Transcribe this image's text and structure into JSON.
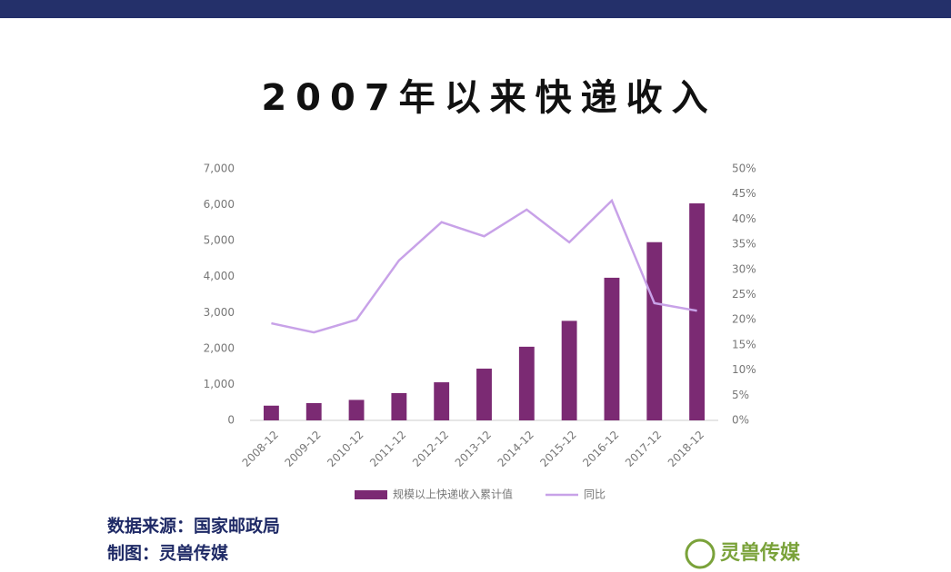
{
  "chart_data": {
    "type": "bar",
    "title": "2007年以来快递收入",
    "categories": [
      "2008-12",
      "2009-12",
      "2010-12",
      "2011-12",
      "2012-12",
      "2013-12",
      "2014-12",
      "2015-12",
      "2016-12",
      "2017-12",
      "2018-12"
    ],
    "series": [
      {
        "name": "规模以上快递收入累计值",
        "type": "bar",
        "color": "#7b2a73",
        "values": [
          410,
          480,
          570,
          760,
          1060,
          1440,
          2050,
          2770,
          3970,
          4960,
          6040
        ]
      },
      {
        "name": "同比",
        "type": "line",
        "axis": "y2",
        "color": "#c8a2e8",
        "values": [
          19.3,
          17.5,
          20.0,
          31.8,
          39.4,
          36.6,
          41.9,
          35.4,
          43.7,
          23.3,
          21.8
        ]
      }
    ],
    "ylim": [
      0,
      7000
    ],
    "yticks": [
      0,
      {
        "value": 1000,
        "label": "1,000"
      },
      {
        "value": 2000,
        "label": "2,000"
      },
      {
        "value": 3000,
        "label": "3,000"
      },
      {
        "value": 4000,
        "label": "4,000"
      },
      {
        "value": 5000,
        "label": "5,000"
      },
      {
        "value": 6000,
        "label": "6,000"
      },
      {
        "value": 7000,
        "label": "7,000"
      }
    ],
    "y2lim": [
      0,
      50
    ],
    "y2ticks": [
      {
        "value": 0,
        "label": "0%"
      },
      {
        "value": 5,
        "label": "5%"
      },
      {
        "value": 10,
        "label": "10%"
      },
      {
        "value": 15,
        "label": "15%"
      },
      {
        "value": 20,
        "label": "20%"
      },
      {
        "value": 25,
        "label": "25%"
      },
      {
        "value": 30,
        "label": "30%"
      },
      {
        "value": 35,
        "label": "35%"
      },
      {
        "value": 40,
        "label": "40%"
      },
      {
        "value": 45,
        "label": "45%"
      },
      {
        "value": 50,
        "label": "50%"
      }
    ],
    "grid": false
  },
  "footer": {
    "source": "数据来源：国家邮政局",
    "credit": "制图：灵兽传媒",
    "logo": "灵兽传媒"
  }
}
